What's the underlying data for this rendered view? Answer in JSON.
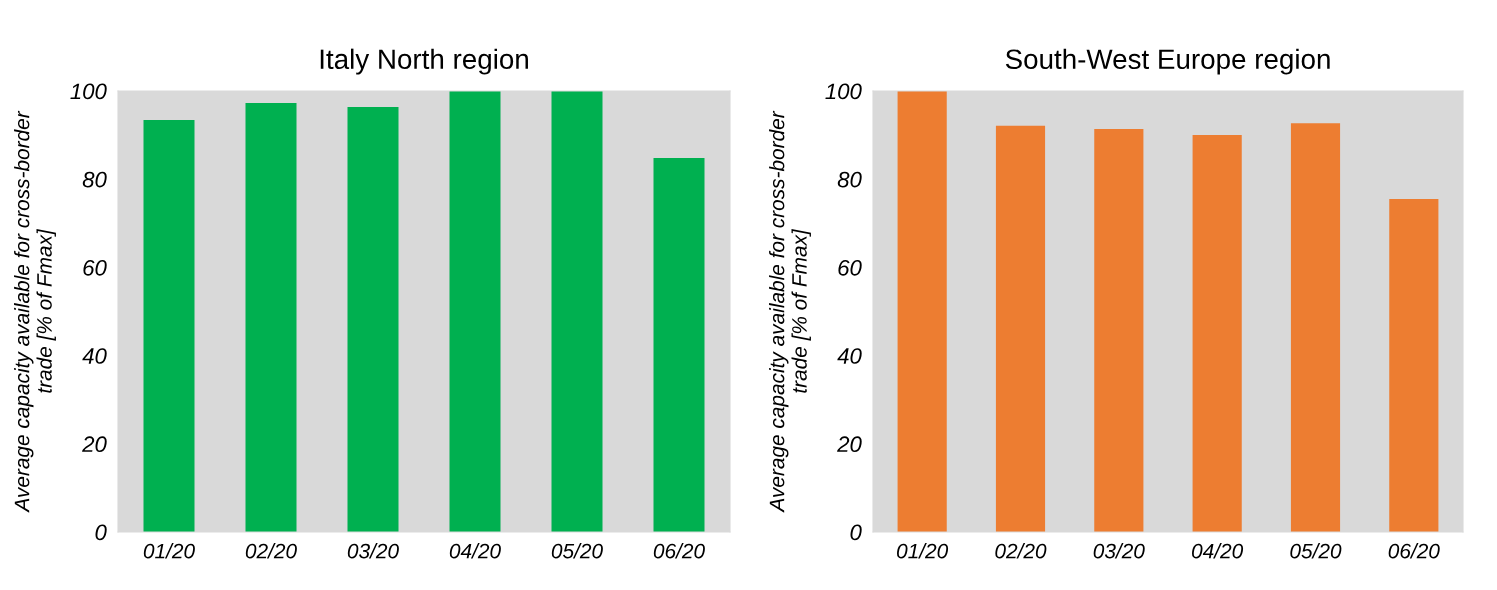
{
  "chart_data": [
    {
      "type": "bar",
      "title": "Italy North region",
      "ylabel": "Average capacity available for cross-border\ntrade [% of Fmax]",
      "categories": [
        "01/20",
        "02/20",
        "03/20",
        "04/20",
        "05/20",
        "06/20"
      ],
      "values": [
        93.4,
        97.3,
        96.4,
        100,
        100,
        84.8
      ],
      "color": "#00b050",
      "ylim": [
        0,
        100
      ],
      "yticks": [
        0,
        20,
        40,
        60,
        80,
        100
      ],
      "grid": false,
      "legend": false
    },
    {
      "type": "bar",
      "title": "South-West Europe region",
      "ylabel": "Average capacity available for cross-border\ntrade [% of Fmax]",
      "categories": [
        "01/20",
        "02/20",
        "03/20",
        "04/20",
        "05/20",
        "06/20"
      ],
      "values": [
        100,
        92.1,
        91.4,
        90.0,
        92.7,
        75.5
      ],
      "color": "#ed7d31",
      "ylim": [
        0,
        100
      ],
      "yticks": [
        0,
        20,
        40,
        60,
        80,
        100
      ],
      "grid": false,
      "legend": false
    }
  ]
}
